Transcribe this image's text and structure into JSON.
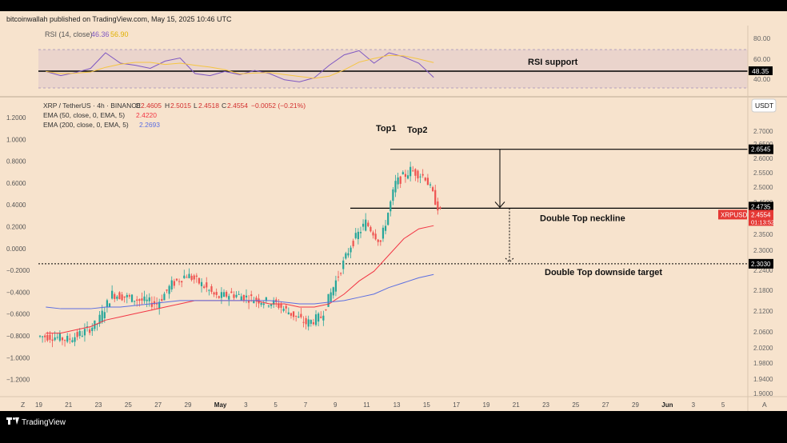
{
  "header": {
    "text": "bitcoinwallah published on TradingView.com, May 15, 2025 10:46 UTC"
  },
  "footer": {
    "logo_text": "TradingView"
  },
  "rsi_pane": {
    "legend_name": "RSI (14, close)",
    "legend_value": "46.36",
    "legend_value2": "56.90",
    "ticks": [
      "80.00",
      "60.00",
      "40.00"
    ],
    "current_label": "48.35",
    "annotation": "RSI support",
    "colors": {
      "rsi": "#7e57c2",
      "ma": "#f5c542",
      "band": "rgba(126,87,194,0.12)",
      "support": "#000000"
    }
  },
  "main_pane": {
    "symbol_line": "XRP / TetherUS · 4h · BINANCE",
    "ohlc": {
      "o_label": "O",
      "o": "2.4605",
      "h_label": "H",
      "h": "2.5015",
      "l_label": "L",
      "l": "2.4518",
      "c_label": "C",
      "c": "2.4554",
      "change": "−0.0052 (−0.21%)"
    },
    "ema50_text": "EMA (50, close, 0, EMA, 5)",
    "ema50_value": "2.4220",
    "ema200_text": "EMA (200, close, 0, EMA, 5)",
    "ema200_value": "2.2693",
    "currency_button": "USDT",
    "annotations": {
      "top1": "Top1",
      "top2": "Top2",
      "neckline": "Double Top neckline",
      "target": "Double Top downside target"
    },
    "price_labels": {
      "top_level": "2.6545",
      "neckline": "2.4735",
      "symbol_tag": "XRPUSDT",
      "last_price": "2.4554",
      "countdown": "01:13:52",
      "target": "2.3030"
    },
    "colors": {
      "up": "#26a69a",
      "down": "#ef5350",
      "ema50": "#f23645",
      "ema200": "#5b6ee1",
      "background": "#f7e3cd"
    }
  },
  "right_axis_ticks": [
    "2.7000",
    "2.6500",
    "2.6000",
    "2.5500",
    "2.5000",
    "2.4500",
    "2.4000",
    "2.3500",
    "2.3000",
    "2.2400",
    "2.1800",
    "2.1200",
    "2.0600",
    "2.0200",
    "1.9800",
    "1.9400",
    "1.9000"
  ],
  "left_axis_ticks": [
    "1.2000",
    "1.0000",
    "0.8000",
    "0.6000",
    "0.4000",
    "0.2000",
    "0.0000",
    "−0.2000",
    "−0.4000",
    "−0.6000",
    "−0.8000",
    "−1.0000",
    "−1.2000"
  ],
  "time_axis": {
    "corner_left": "Z",
    "corner_right": "A",
    "ticks": [
      "19",
      "21",
      "23",
      "25",
      "27",
      "29",
      "May",
      "3",
      "5",
      "7",
      "9",
      "11",
      "13",
      "15",
      "17",
      "19",
      "21",
      "23",
      "25",
      "27",
      "29",
      "Jun",
      "3",
      "5"
    ]
  },
  "chart_data": {
    "type": "line",
    "title": "XRP / TetherUS · 4h · BINANCE",
    "price_ylim": [
      1.9,
      2.72
    ],
    "price_series": [
      {
        "name": "XRP / TetherUS",
        "x": [
          "Apr 19",
          "Apr 20",
          "Apr 21",
          "Apr 22",
          "Apr 23",
          "Apr 24",
          "Apr 25",
          "Apr 26",
          "Apr 27",
          "Apr 28",
          "Apr 29",
          "Apr 30",
          "May 1",
          "May 2",
          "May 3",
          "May 4",
          "May 5",
          "May 6",
          "May 7",
          "May 8",
          "May 9",
          "May 10",
          "May 11",
          "May 12",
          "May 13",
          "May 14",
          "May 15"
        ],
        "values": [
          2.08,
          2.07,
          2.09,
          2.12,
          2.21,
          2.2,
          2.19,
          2.18,
          2.24,
          2.27,
          2.24,
          2.2,
          2.21,
          2.2,
          2.19,
          2.18,
          2.15,
          2.12,
          2.14,
          2.25,
          2.36,
          2.43,
          2.37,
          2.55,
          2.59,
          2.57,
          2.46
        ]
      },
      {
        "name": "EMA (50, close, 0, EMA, 5)",
        "values": [
          2.09,
          2.09,
          2.1,
          2.11,
          2.13,
          2.14,
          2.15,
          2.16,
          2.17,
          2.18,
          2.19,
          2.19,
          2.19,
          2.19,
          2.19,
          2.18,
          2.18,
          2.17,
          2.17,
          2.18,
          2.21,
          2.25,
          2.28,
          2.33,
          2.38,
          2.41,
          2.42
        ]
      },
      {
        "name": "EMA (200, close, 0, EMA, 5)",
        "values": [
          2.17,
          2.165,
          2.165,
          2.165,
          2.17,
          2.17,
          2.175,
          2.18,
          2.185,
          2.19,
          2.19,
          2.19,
          2.19,
          2.19,
          2.19,
          2.19,
          2.185,
          2.18,
          2.18,
          2.185,
          2.19,
          2.2,
          2.21,
          2.23,
          2.245,
          2.26,
          2.27
        ]
      }
    ],
    "levels": {
      "double_top": 2.6545,
      "neckline": 2.4735,
      "downside_target": 2.303
    },
    "rsi_series": [
      52,
      48,
      51,
      55,
      70,
      60,
      58,
      55,
      62,
      65,
      50,
      48,
      52,
      49,
      53,
      50,
      44,
      42,
      46,
      58,
      68,
      72,
      60,
      70,
      66,
      60,
      46.36
    ],
    "rsi_ylim": [
      30,
      90
    ],
    "rsi_support": 48.35,
    "xlabel": "",
    "ylabel": ""
  }
}
